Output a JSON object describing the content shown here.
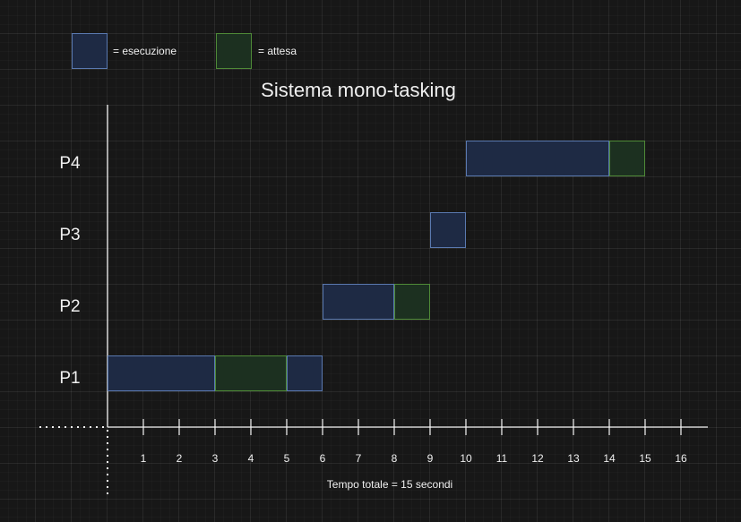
{
  "legend": {
    "items": [
      {
        "key": "exec",
        "label": "= esecuzione",
        "fill": "#1e2a44",
        "stroke": "#5a79b0"
      },
      {
        "key": "wait",
        "label": "= attesa",
        "fill": "#1c3020",
        "stroke": "#4f8a37"
      }
    ]
  },
  "title": "Sistema mono-tasking",
  "rows": [
    {
      "label": "P4",
      "segments": [
        {
          "start": 10,
          "end": 14,
          "state": "exec"
        },
        {
          "start": 14,
          "end": 15,
          "state": "wait"
        }
      ]
    },
    {
      "label": "P3",
      "segments": [
        {
          "start": 9,
          "end": 10,
          "state": "exec"
        }
      ]
    },
    {
      "label": "P2",
      "segments": [
        {
          "start": 6,
          "end": 8,
          "state": "exec"
        },
        {
          "start": 8,
          "end": 9,
          "state": "wait"
        }
      ]
    },
    {
      "label": "P1",
      "segments": [
        {
          "start": 0,
          "end": 3,
          "state": "exec"
        },
        {
          "start": 3,
          "end": 5,
          "state": "wait"
        },
        {
          "start": 5,
          "end": 6,
          "state": "exec"
        }
      ]
    }
  ],
  "axis": {
    "ticks": [
      "1",
      "2",
      "3",
      "4",
      "5",
      "6",
      "7",
      "8",
      "9",
      "10",
      "11",
      "12",
      "13",
      "14",
      "15",
      "16"
    ]
  },
  "footer": "Tempo totale = 15 secondi",
  "colors": {
    "axis": "#f2f2f2",
    "exec_fill": "#1e2a44",
    "exec_stroke": "#5a79b0",
    "wait_fill": "#1c3020",
    "wait_stroke": "#4f8a37"
  }
}
